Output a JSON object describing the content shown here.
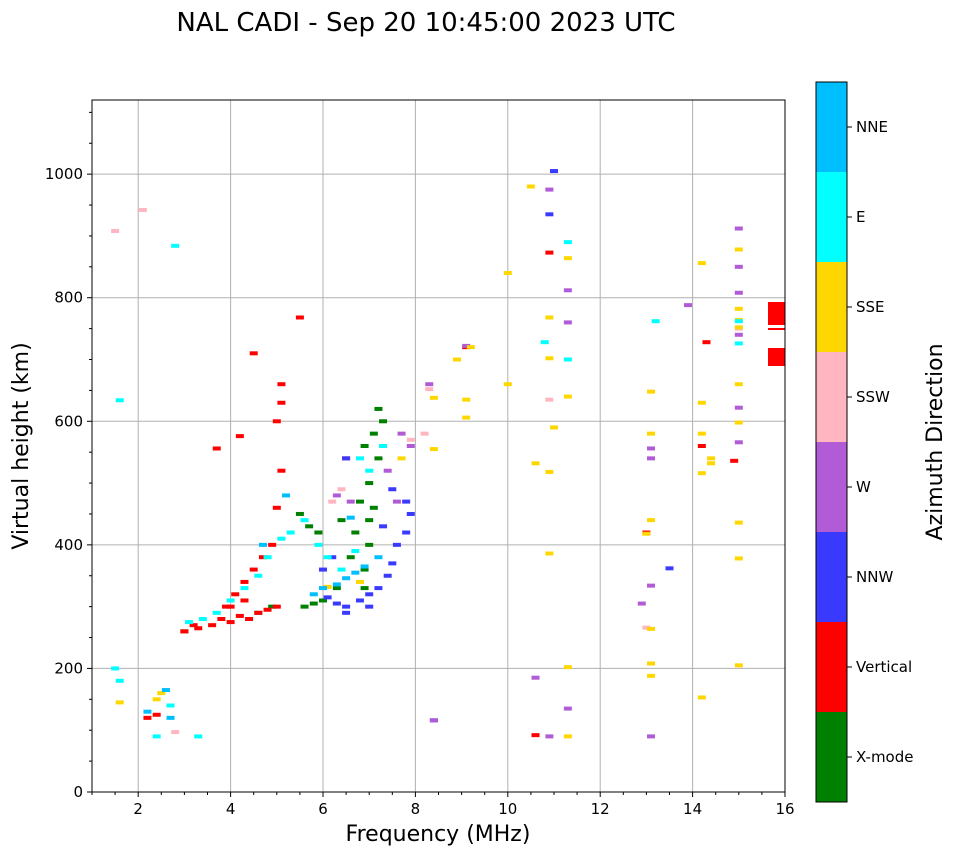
{
  "chart_data": {
    "type": "scatter",
    "title": "NAL CADI - Sep 20 10:45:00 2023 UTC",
    "xlabel": "Frequency (MHz)",
    "ylabel": "Virtual height (km)",
    "xlim": [
      1,
      16
    ],
    "ylim": [
      0,
      1120
    ],
    "xticks": [
      "2",
      "4",
      "6",
      "8",
      "10",
      "12",
      "14",
      "16"
    ],
    "yticks": [
      "0",
      "200",
      "400",
      "600",
      "800",
      "1000"
    ],
    "grid": true,
    "colorbar": {
      "label": "Azimuth Direction",
      "categories": [
        "X-mode",
        "Vertical",
        "NNW",
        "W",
        "SSW",
        "SSE",
        "E",
        "NNE"
      ],
      "colors": [
        "#008000",
        "#ff0000",
        "#3a3aff",
        "#b15bd6",
        "#ffb6c1",
        "#ffd700",
        "#00ffff",
        "#00bfff"
      ]
    },
    "series": [
      {
        "name": "X-mode",
        "points": [
          [
            5.6,
            300
          ],
          [
            5.8,
            305
          ],
          [
            6.0,
            310
          ],
          [
            5.9,
            420
          ],
          [
            5.7,
            430
          ],
          [
            6.4,
            440
          ],
          [
            6.9,
            360
          ],
          [
            7.0,
            400
          ],
          [
            7.1,
            460
          ],
          [
            7.2,
            540
          ],
          [
            7.2,
            620
          ],
          [
            6.8,
            470
          ],
          [
            6.6,
            380
          ],
          [
            7.0,
            500
          ],
          [
            6.9,
            330
          ],
          [
            4.6,
            290
          ],
          [
            4.9,
            300
          ],
          [
            7.1,
            580
          ],
          [
            6.9,
            560
          ],
          [
            5.5,
            450
          ],
          [
            6.3,
            330
          ],
          [
            7.3,
            600
          ],
          [
            6.7,
            420
          ],
          [
            7.0,
            440
          ],
          [
            3.0,
            260
          ]
        ]
      },
      {
        "name": "Vertical",
        "points": [
          [
            3.0,
            260
          ],
          [
            3.3,
            265
          ],
          [
            3.6,
            270
          ],
          [
            3.8,
            280
          ],
          [
            4.0,
            275
          ],
          [
            4.2,
            285
          ],
          [
            4.4,
            280
          ],
          [
            4.6,
            290
          ],
          [
            4.8,
            295
          ],
          [
            5.0,
            300
          ],
          [
            3.9,
            300
          ],
          [
            4.1,
            320
          ],
          [
            4.3,
            340
          ],
          [
            4.5,
            360
          ],
          [
            4.7,
            380
          ],
          [
            4.9,
            400
          ],
          [
            5.0,
            460
          ],
          [
            5.1,
            520
          ],
          [
            5.0,
            600
          ],
          [
            5.1,
            630
          ],
          [
            5.1,
            660
          ],
          [
            4.2,
            576
          ],
          [
            3.7,
            556
          ],
          [
            4.5,
            710
          ],
          [
            5.5,
            768
          ],
          [
            6.5,
            540
          ],
          [
            2.2,
            120
          ],
          [
            2.4,
            125
          ],
          [
            9.1,
            720
          ],
          [
            10.6,
            92
          ],
          [
            10.9,
            873
          ],
          [
            14.3,
            728
          ],
          [
            14.9,
            536
          ],
          [
            14.2,
            560
          ],
          [
            13.0,
            420
          ],
          [
            3.2,
            270
          ],
          [
            4.0,
            300
          ],
          [
            4.3,
            310
          ]
        ]
      },
      {
        "name": "NNW",
        "points": [
          [
            6.1,
            315
          ],
          [
            6.3,
            305
          ],
          [
            6.5,
            300
          ],
          [
            6.8,
            310
          ],
          [
            7.0,
            320
          ],
          [
            7.2,
            330
          ],
          [
            7.4,
            350
          ],
          [
            7.5,
            370
          ],
          [
            7.6,
            400
          ],
          [
            7.8,
            420
          ],
          [
            7.9,
            450
          ],
          [
            7.8,
            470
          ],
          [
            7.5,
            490
          ],
          [
            7.3,
            430
          ],
          [
            6.5,
            290
          ],
          [
            7.0,
            300
          ],
          [
            6.2,
            380
          ],
          [
            6.0,
            360
          ],
          [
            6.5,
            540
          ],
          [
            8.4,
            116
          ],
          [
            10.9,
            935
          ],
          [
            11.0,
            1005
          ],
          [
            13.5,
            362
          ]
        ]
      },
      {
        "name": "W",
        "points": [
          [
            6.3,
            480
          ],
          [
            6.6,
            470
          ],
          [
            7.4,
            520
          ],
          [
            7.6,
            470
          ],
          [
            7.9,
            560
          ],
          [
            7.7,
            580
          ],
          [
            8.3,
            660
          ],
          [
            8.4,
            116
          ],
          [
            9.1,
            722
          ],
          [
            10.6,
            185
          ],
          [
            10.9,
            975
          ],
          [
            11.3,
            760
          ],
          [
            11.3,
            812
          ],
          [
            11.3,
            135
          ],
          [
            12.9,
            305
          ],
          [
            13.1,
            334
          ],
          [
            13.1,
            540
          ],
          [
            13.1,
            556
          ],
          [
            13.1,
            90
          ],
          [
            13.9,
            788
          ],
          [
            15.0,
            912
          ],
          [
            15.0,
            850
          ],
          [
            15.0,
            808
          ],
          [
            15.0,
            740
          ],
          [
            15.0,
            622
          ],
          [
            15.0,
            566
          ],
          [
            10.9,
            90
          ]
        ]
      },
      {
        "name": "SSW",
        "points": [
          [
            1.5,
            908
          ],
          [
            2.1,
            942
          ],
          [
            6.4,
            490
          ],
          [
            6.2,
            470
          ],
          [
            7.9,
            570
          ],
          [
            8.2,
            580
          ],
          [
            8.3,
            652
          ],
          [
            10.9,
            635
          ],
          [
            2.8,
            97
          ],
          [
            13.0,
            266
          ],
          [
            15.0,
            750
          ]
        ]
      },
      {
        "name": "SSE",
        "points": [
          [
            1.6,
            145
          ],
          [
            2.4,
            150
          ],
          [
            2.5,
            160
          ],
          [
            6.1,
            332
          ],
          [
            6.8,
            340
          ],
          [
            7.7,
            540
          ],
          [
            8.4,
            638
          ],
          [
            8.4,
            555
          ],
          [
            8.9,
            700
          ],
          [
            9.1,
            635
          ],
          [
            9.1,
            606
          ],
          [
            9.2,
            720
          ],
          [
            10.0,
            840
          ],
          [
            10.0,
            660
          ],
          [
            10.5,
            980
          ],
          [
            10.6,
            532
          ],
          [
            10.9,
            768
          ],
          [
            10.9,
            702
          ],
          [
            10.9,
            518
          ],
          [
            10.9,
            386
          ],
          [
            11.0,
            590
          ],
          [
            11.3,
            864
          ],
          [
            11.3,
            640
          ],
          [
            11.3,
            90
          ],
          [
            11.3,
            202
          ],
          [
            13.1,
            648
          ],
          [
            13.1,
            580
          ],
          [
            13.1,
            440
          ],
          [
            13.1,
            264
          ],
          [
            13.1,
            208
          ],
          [
            13.1,
            188
          ],
          [
            13.0,
            418
          ],
          [
            14.2,
            856
          ],
          [
            14.2,
            630
          ],
          [
            14.2,
            580
          ],
          [
            14.2,
            516
          ],
          [
            14.2,
            153
          ],
          [
            14.4,
            540
          ],
          [
            14.4,
            532
          ],
          [
            15.0,
            878
          ],
          [
            15.0,
            782
          ],
          [
            15.0,
            764
          ],
          [
            15.0,
            752
          ],
          [
            15.0,
            660
          ],
          [
            15.0,
            598
          ],
          [
            15.0,
            436
          ],
          [
            15.0,
            378
          ],
          [
            15.0,
            205
          ]
        ]
      },
      {
        "name": "E",
        "points": [
          [
            2.8,
            884
          ],
          [
            1.6,
            634
          ],
          [
            1.5,
            200
          ],
          [
            1.6,
            180
          ],
          [
            3.1,
            275
          ],
          [
            3.4,
            280
          ],
          [
            3.7,
            290
          ],
          [
            4.0,
            310
          ],
          [
            4.3,
            330
          ],
          [
            4.6,
            350
          ],
          [
            4.8,
            380
          ],
          [
            5.1,
            410
          ],
          [
            5.3,
            420
          ],
          [
            5.6,
            440
          ],
          [
            5.9,
            400
          ],
          [
            6.1,
            380
          ],
          [
            6.4,
            360
          ],
          [
            6.7,
            390
          ],
          [
            7.0,
            520
          ],
          [
            7.3,
            560
          ],
          [
            6.8,
            540
          ],
          [
            10.8,
            728
          ],
          [
            11.3,
            890
          ],
          [
            11.3,
            700
          ],
          [
            13.2,
            762
          ],
          [
            15.0,
            762
          ],
          [
            15.0,
            726
          ],
          [
            2.7,
            140
          ],
          [
            2.4,
            90
          ],
          [
            3.3,
            90
          ]
        ]
      },
      {
        "name": "NNE",
        "points": [
          [
            6.3,
            336
          ],
          [
            6.5,
            346
          ],
          [
            6.7,
            355
          ],
          [
            6.9,
            365
          ],
          [
            7.2,
            380
          ],
          [
            6.0,
            330
          ],
          [
            5.8,
            320
          ],
          [
            6.6,
            444
          ],
          [
            4.7,
            400
          ],
          [
            5.2,
            480
          ],
          [
            2.6,
            165
          ],
          [
            2.7,
            120
          ],
          [
            2.2,
            130
          ]
        ]
      }
    ]
  }
}
